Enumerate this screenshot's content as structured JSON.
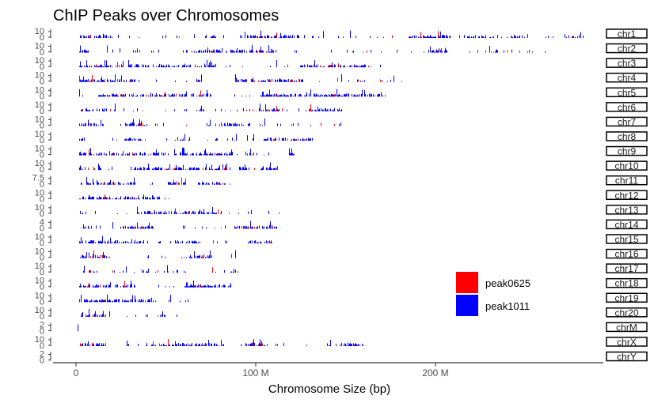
{
  "chart_data": {
    "type": "bar",
    "title": "ChIP Peaks over Chromosomes",
    "xlabel": "Chromosome Size (bp)",
    "ylabel": "",
    "x_ticks": [
      {
        "value": 0,
        "label": "0"
      },
      {
        "value": 100000000,
        "label": "100 M"
      },
      {
        "value": 200000000,
        "label": "200 M"
      }
    ],
    "xlim": [
      0,
      285000000
    ],
    "legend_position": "right",
    "series": [
      {
        "name": "peak0625",
        "color": "#ff0000"
      },
      {
        "name": "peak1011",
        "color": "#0000ff"
      }
    ],
    "chromosomes": [
      {
        "name": "chr1",
        "length": 282000000,
        "ytick_top": "10",
        "ytick_bottom": "0"
      },
      {
        "name": "chr2",
        "length": 266000000,
        "ytick_top": "10",
        "ytick_bottom": "0"
      },
      {
        "name": "chr3",
        "length": 177000000,
        "ytick_top": "10",
        "ytick_bottom": "0"
      },
      {
        "name": "chr4",
        "length": 184000000,
        "ytick_top": "10",
        "ytick_bottom": "0"
      },
      {
        "name": "chr5",
        "length": 173000000,
        "ytick_top": "10",
        "ytick_bottom": "0"
      },
      {
        "name": "chr6",
        "length": 148000000,
        "ytick_top": "10",
        "ytick_bottom": "0"
      },
      {
        "name": "chr7",
        "length": 148000000,
        "ytick_top": "10",
        "ytick_bottom": "0"
      },
      {
        "name": "chr8",
        "length": 133000000,
        "ytick_top": "10",
        "ytick_bottom": "0"
      },
      {
        "name": "chr9",
        "length": 122000000,
        "ytick_top": "10",
        "ytick_bottom": "0"
      },
      {
        "name": "chr10",
        "length": 112000000,
        "ytick_top": "10",
        "ytick_bottom": "0"
      },
      {
        "name": "chr11",
        "length": 90000000,
        "ytick_top": "7.5",
        "ytick_bottom": "0"
      },
      {
        "name": "chr12",
        "length": 53000000,
        "ytick_top": "10",
        "ytick_bottom": "0"
      },
      {
        "name": "chr13",
        "length": 114000000,
        "ytick_top": "10",
        "ytick_bottom": "0"
      },
      {
        "name": "chr14",
        "length": 112000000,
        "ytick_top": "4",
        "ytick_bottom": "0"
      },
      {
        "name": "chr15",
        "length": 109000000,
        "ytick_top": "10",
        "ytick_bottom": "0"
      },
      {
        "name": "chr16",
        "length": 90000000,
        "ytick_top": "10",
        "ytick_bottom": "0"
      },
      {
        "name": "chr17",
        "length": 90000000,
        "ytick_top": "10",
        "ytick_bottom": "0"
      },
      {
        "name": "chr18",
        "length": 87000000,
        "ytick_top": "10",
        "ytick_bottom": "0"
      },
      {
        "name": "chr19",
        "length": 63000000,
        "ytick_top": "10",
        "ytick_bottom": "0"
      },
      {
        "name": "chr20",
        "length": 56000000,
        "ytick_top": "10",
        "ytick_bottom": "0"
      },
      {
        "name": "chrM",
        "length": 16000,
        "ytick_top": "2",
        "ytick_bottom": "0"
      },
      {
        "name": "chrX",
        "length": 160000000,
        "ytick_top": "10",
        "ytick_bottom": "0"
      },
      {
        "name": "chrY",
        "length": 2000000,
        "ytick_top": "2",
        "ytick_bottom": "0"
      }
    ]
  }
}
